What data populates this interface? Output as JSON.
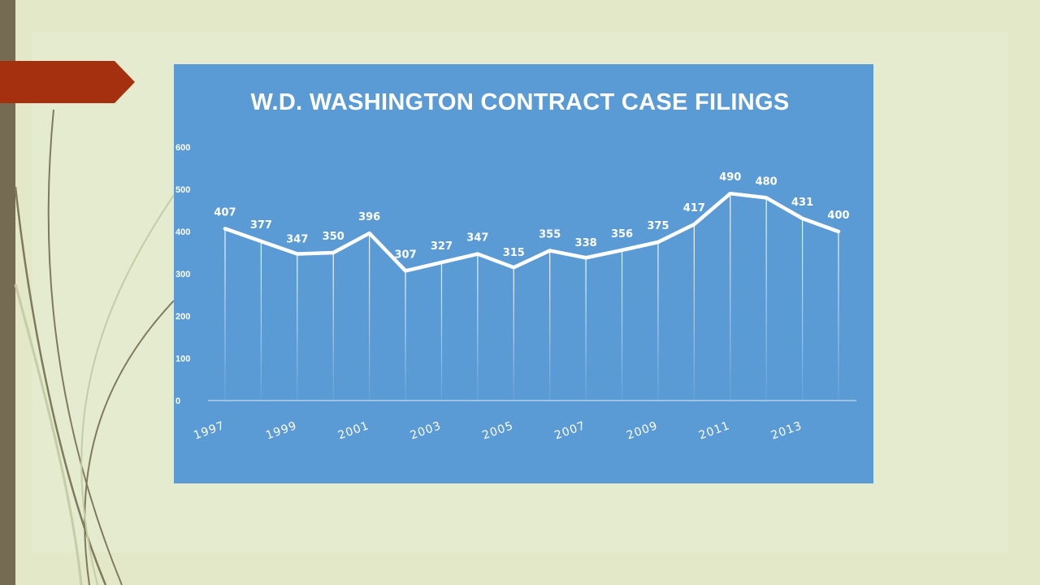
{
  "slide": {
    "accent_tab_color": "#a5300f",
    "left_bar_color": "#756b52",
    "background_color": "#e2e8c8",
    "panel_color": "#5b9bd5"
  },
  "chart_data": {
    "type": "line",
    "title": "W.D. WASHINGTON CONTRACT CASE FILINGS",
    "xlabel": "",
    "ylabel": "",
    "x": [
      1997,
      1998,
      1999,
      2000,
      2001,
      2002,
      2003,
      2004,
      2005,
      2006,
      2007,
      2008,
      2009,
      2010,
      2011,
      2012,
      2013,
      2014
    ],
    "x_tick_labels": [
      "1997",
      "1999",
      "2001",
      "2003",
      "2005",
      "2007",
      "2009",
      "2011",
      "2013"
    ],
    "values": [
      407,
      377,
      347,
      350,
      396,
      307,
      327,
      347,
      315,
      355,
      338,
      356,
      375,
      417,
      490,
      480,
      431,
      400
    ],
    "y_ticks": [
      0,
      100,
      200,
      300,
      400,
      500,
      600
    ],
    "ylim": [
      0,
      600
    ],
    "grid": false,
    "drop_lines": true,
    "data_labels": true,
    "line_color": "#ffffff"
  }
}
